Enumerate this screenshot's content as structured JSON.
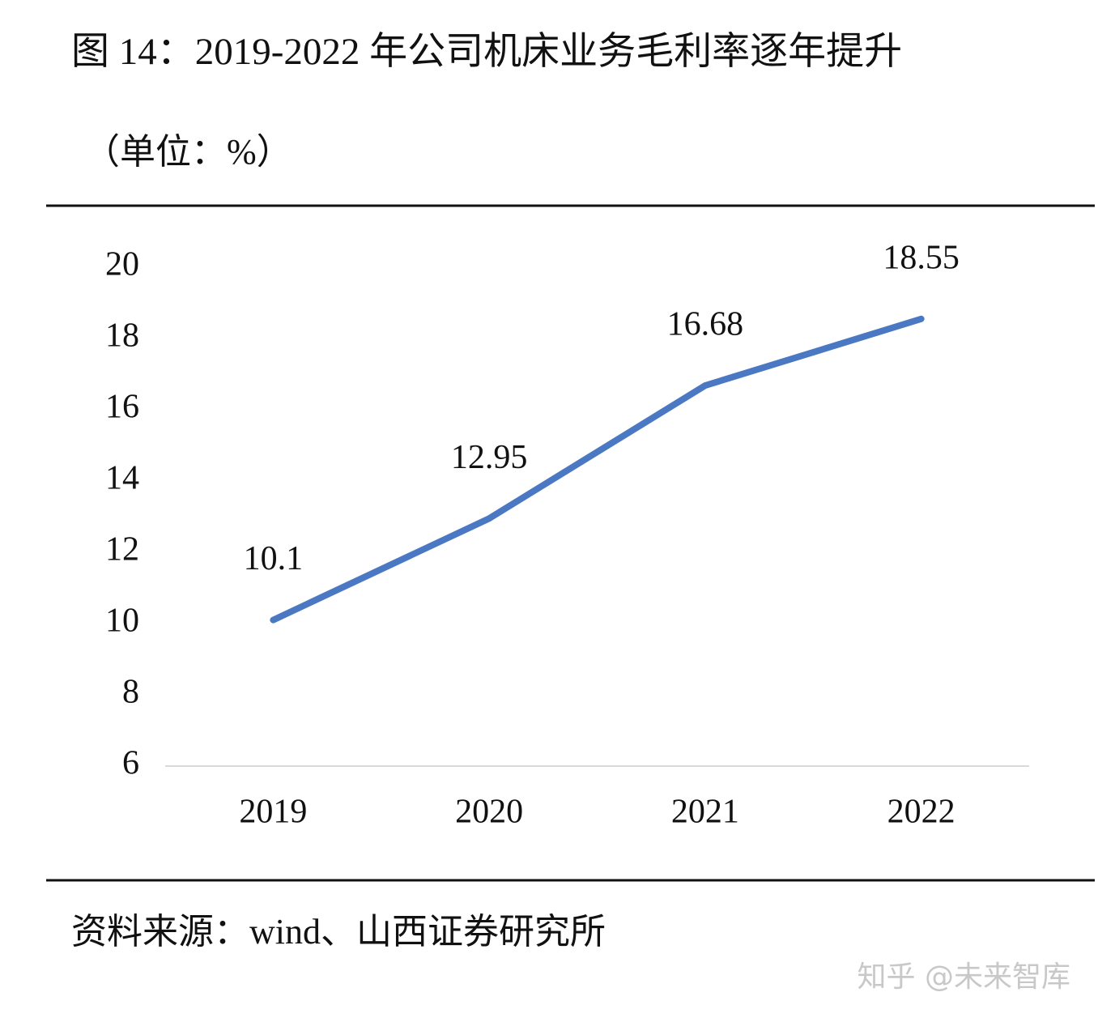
{
  "chart_data": {
    "type": "line",
    "title": "图 14：2019-2022 年公司机床业务毛利率逐年提升",
    "subtitle": "（单位：%）",
    "categories": [
      "2019",
      "2020",
      "2021",
      "2022"
    ],
    "values": [
      10.1,
      12.95,
      16.68,
      18.55
    ],
    "color": "#4a78c2",
    "ylim": [
      6,
      20
    ],
    "yticks": [
      6,
      8,
      10,
      12,
      14,
      16,
      18,
      20
    ],
    "grid": false,
    "source": "资料来源：wind、山西证券研究所",
    "watermark": "知乎 @未来智库"
  }
}
